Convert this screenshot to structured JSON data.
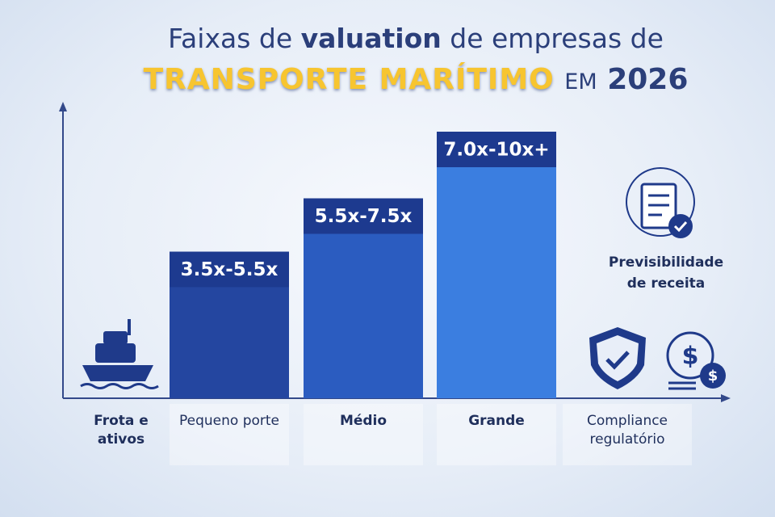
{
  "chart_data": {
    "type": "bar",
    "title": [
      "Faixas de",
      "valuation",
      "de empresas de",
      "TRANSPORTE MARÍTIMO",
      "EM",
      "2026"
    ],
    "categories": [
      "Frota e ativos",
      "Pequeno porte",
      "Médio",
      "Grande",
      "Compliance regulatório"
    ],
    "values": [
      null,
      5.5,
      7.5,
      10,
      null
    ],
    "value_labels": [
      null,
      "3.5x-5.5x",
      "5.5x-7.5x",
      "7.0x-10x+",
      null
    ],
    "colors": [
      null,
      "#2446a0",
      "#2b5cc0",
      "#3b7ee0",
      null
    ],
    "ylim": [
      0,
      11
    ],
    "annotations": [
      "Previsibilidade de receita"
    ]
  }
}
